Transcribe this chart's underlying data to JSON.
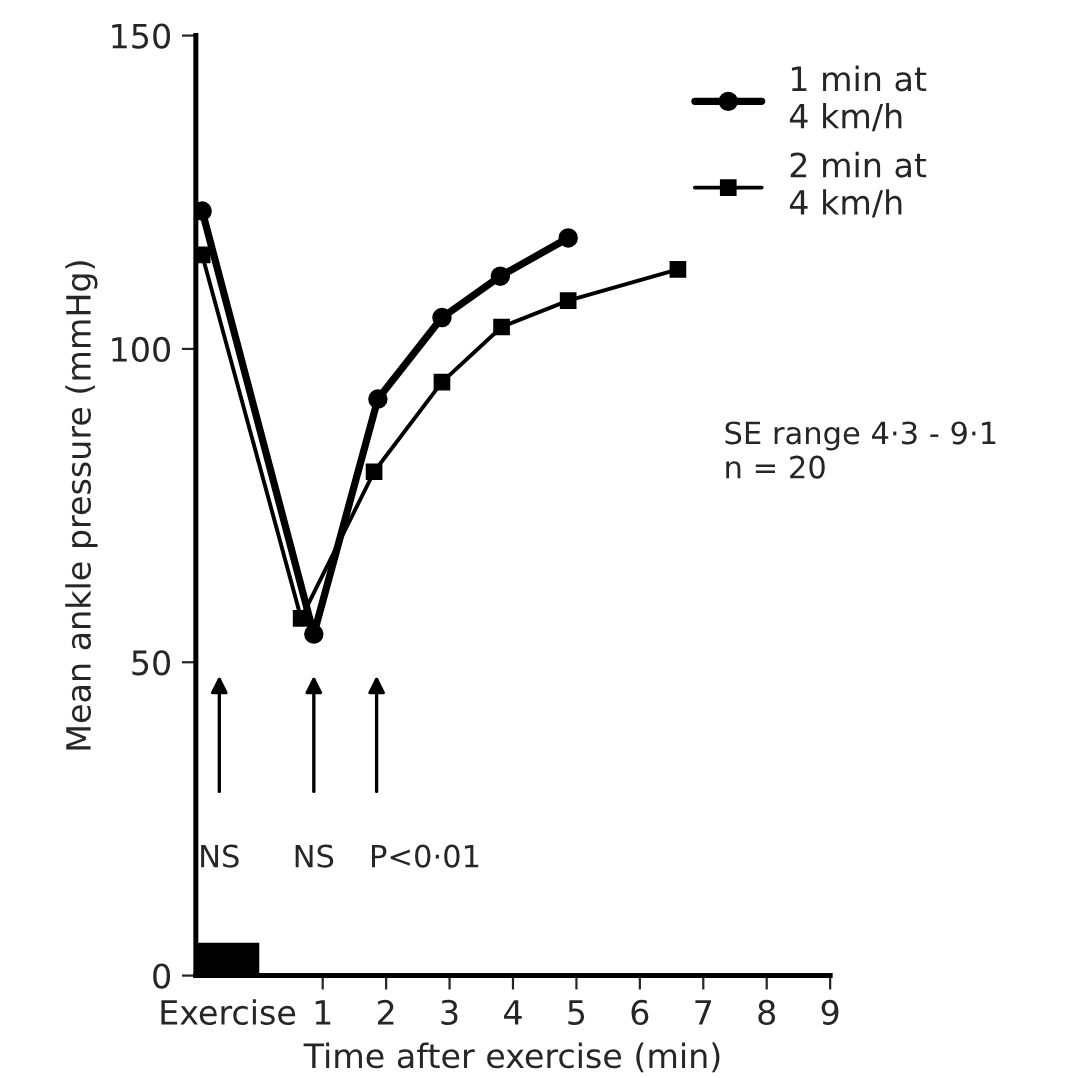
{
  "chart_data": {
    "type": "line",
    "xlabel": "Time after exercise (min)",
    "ylabel": "Mean ankle pressure (mmHg)",
    "xlim": [
      -1,
      9
    ],
    "xticks": [
      {
        "value": -0.5,
        "label": "Exercise"
      },
      1,
      2,
      3,
      4,
      5,
      6,
      7,
      8,
      9
    ],
    "ylim": [
      0,
      150
    ],
    "yticks": [
      0,
      50,
      100,
      150
    ],
    "series": [
      {
        "name": "1 min at\n4 km/h",
        "color": "#000000",
        "marker": "circle",
        "x": [
          -0.9,
          0.86,
          1.87,
          2.88,
          3.8,
          4.87
        ],
        "values": [
          122,
          54.5,
          92,
          105,
          111.6,
          117.7
        ]
      },
      {
        "name": "2 min at\n4 km/h",
        "color": "#000000",
        "marker": "square",
        "x": [
          -0.9,
          0.66,
          1.81,
          2.88,
          3.82,
          4.87,
          6.6
        ],
        "values": [
          115,
          57,
          80.4,
          94.7,
          103.5,
          107.7,
          112.7
        ]
      }
    ],
    "annotations": [
      "NS",
      "NS",
      "P<0·01",
      "SE range 4·3 - 9·1\nn = 20"
    ],
    "legend": "top right",
    "grid": false,
    "line_style": "solid"
  }
}
